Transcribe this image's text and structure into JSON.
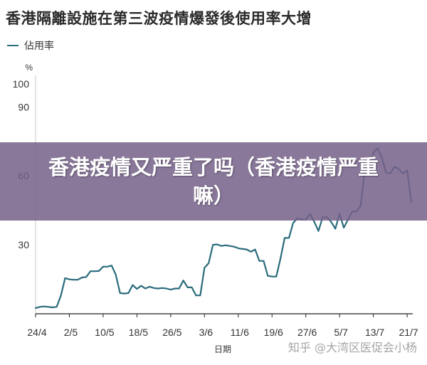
{
  "chart_data": {
    "type": "line",
    "title": "香港隔離設施在第三波疫情爆發後使用率大增",
    "ylabel": "%",
    "xlabel": "日期",
    "ylim": [
      0,
      100
    ],
    "yticks": [
      0,
      30,
      60,
      90,
      100
    ],
    "ytick_labels": [
      "",
      "30",
      "60",
      "90",
      "100"
    ],
    "xticks": [
      "24/4",
      "2/5",
      "10/5",
      "18/5",
      "26/5",
      "3/6",
      "11/6",
      "19/6",
      "27/6",
      "5/7",
      "13/7",
      "21/7"
    ],
    "grid": false,
    "legend": "top-left",
    "series": [
      {
        "name": "佔用率",
        "color": "#2a6b7c",
        "x": [
          0,
          1,
          2,
          3,
          4,
          5,
          6,
          7,
          8,
          9,
          10,
          11,
          12,
          13,
          14,
          15,
          16,
          17,
          18,
          19,
          20,
          21,
          22,
          23,
          24,
          25,
          26,
          27,
          28,
          29,
          30,
          31,
          32,
          33,
          34,
          35,
          36,
          37,
          38,
          39,
          40,
          41,
          42,
          43,
          44,
          45,
          46,
          47,
          48,
          49,
          50,
          51,
          52,
          53,
          54,
          55,
          56,
          57,
          58,
          59,
          60,
          61,
          62,
          63,
          64,
          65,
          66,
          67,
          68,
          69,
          70,
          71,
          72,
          73,
          74,
          75,
          76,
          77,
          78,
          79,
          80,
          81,
          82,
          83,
          84,
          85,
          86,
          87,
          88,
          89
        ],
        "values": [
          2.5,
          3,
          3.2,
          3,
          2.8,
          3,
          8,
          15.5,
          15,
          14.8,
          14.8,
          15.8,
          16,
          18.5,
          18.5,
          18.6,
          20.5,
          20.5,
          21,
          17,
          9,
          8.8,
          9,
          12.5,
          10.8,
          12.2,
          11,
          11.8,
          11.2,
          11,
          11.2,
          11,
          10.5,
          11,
          11,
          14.5,
          11.5,
          11.5,
          8,
          8,
          20,
          22,
          30,
          30.2,
          29.5,
          29.8,
          29.5,
          29.2,
          28.5,
          28.2,
          28,
          27,
          28,
          23,
          23,
          16.5,
          16.2,
          16.2,
          24,
          33,
          33,
          39.5,
          41.5,
          41,
          41,
          43.5,
          40,
          36,
          42,
          42,
          40,
          37,
          43.5,
          37.5,
          41,
          44.5,
          44.5,
          47,
          63,
          63.5,
          70,
          72,
          68,
          61.5,
          61,
          64,
          63,
          61,
          62.5,
          48.5
        ]
      }
    ]
  },
  "overlay": {
    "text": "香港疫情又严重了吗（香港疫情严重嘛）"
  },
  "watermark": {
    "text": "知乎 @大湾区医促会小杨"
  },
  "colors": {
    "line": "#2a6b7c",
    "overlay": "#76608a"
  }
}
